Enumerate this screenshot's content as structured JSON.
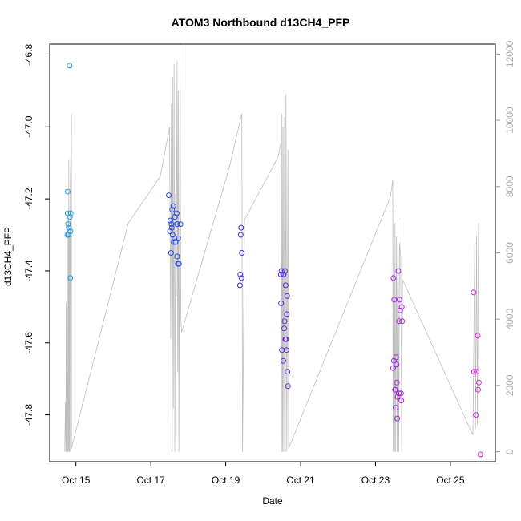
{
  "chart_data": {
    "type": "scatter",
    "title": "ATOM3 Northbound d13CH4_PFP",
    "xlabel": "Date",
    "ylabel": "d13CH4_PFP",
    "x_ticks": [
      "Oct 15",
      "Oct 17",
      "Oct 19",
      "Oct 21",
      "Oct 23",
      "Oct 25"
    ],
    "x_tick_days": [
      15,
      17,
      19,
      21,
      23,
      25
    ],
    "xlim_days": [
      14.3,
      26.2
    ],
    "y_ticks": [
      -46.8,
      -47.0,
      -47.2,
      -47.4,
      -47.6,
      -47.8
    ],
    "ylim": [
      -47.93,
      -46.77
    ],
    "y2_ticks": [
      0,
      2000,
      4000,
      6000,
      8000,
      10000,
      12000
    ],
    "y2lim": [
      -300,
      12300
    ],
    "grid": false,
    "legend": "none",
    "colors": {
      "start": "#1fa0f0",
      "mid": "#2b2bdc",
      "end": "#e61ee6",
      "line": "#bebebe"
    },
    "points": [
      {
        "x": 14.83,
        "y": -46.83
      },
      {
        "x": 14.78,
        "y": -47.18
      },
      {
        "x": 14.78,
        "y": -47.24
      },
      {
        "x": 14.86,
        "y": -47.24
      },
      {
        "x": 14.84,
        "y": -47.25
      },
      {
        "x": 14.79,
        "y": -47.27
      },
      {
        "x": 14.81,
        "y": -47.28
      },
      {
        "x": 14.85,
        "y": -47.29
      },
      {
        "x": 14.8,
        "y": -47.3
      },
      {
        "x": 14.77,
        "y": -47.3
      },
      {
        "x": 14.85,
        "y": -47.42
      },
      {
        "x": 17.48,
        "y": -47.19
      },
      {
        "x": 17.6,
        "y": -47.22
      },
      {
        "x": 17.57,
        "y": -47.23
      },
      {
        "x": 17.69,
        "y": -47.24
      },
      {
        "x": 17.64,
        "y": -47.25
      },
      {
        "x": 17.52,
        "y": -47.26
      },
      {
        "x": 17.55,
        "y": -47.27
      },
      {
        "x": 17.79,
        "y": -47.27
      },
      {
        "x": 17.7,
        "y": -47.27
      },
      {
        "x": 17.56,
        "y": -47.28
      },
      {
        "x": 17.51,
        "y": -47.29
      },
      {
        "x": 17.58,
        "y": -47.3
      },
      {
        "x": 17.63,
        "y": -47.31
      },
      {
        "x": 17.73,
        "y": -47.31
      },
      {
        "x": 17.66,
        "y": -47.32
      },
      {
        "x": 17.61,
        "y": -47.32
      },
      {
        "x": 17.54,
        "y": -47.35
      },
      {
        "x": 17.7,
        "y": -47.36
      },
      {
        "x": 17.72,
        "y": -47.38
      },
      {
        "x": 17.75,
        "y": -47.38
      },
      {
        "x": 19.41,
        "y": -47.28
      },
      {
        "x": 19.4,
        "y": -47.3
      },
      {
        "x": 19.43,
        "y": -47.35
      },
      {
        "x": 19.39,
        "y": -47.41
      },
      {
        "x": 19.42,
        "y": -47.42
      },
      {
        "x": 19.38,
        "y": -47.44
      },
      {
        "x": 20.49,
        "y": -47.4
      },
      {
        "x": 20.58,
        "y": -47.4
      },
      {
        "x": 20.47,
        "y": -47.41
      },
      {
        "x": 20.55,
        "y": -47.41
      },
      {
        "x": 20.53,
        "y": -47.41
      },
      {
        "x": 20.6,
        "y": -47.44
      },
      {
        "x": 20.64,
        "y": -47.47
      },
      {
        "x": 20.48,
        "y": -47.49
      },
      {
        "x": 20.63,
        "y": -47.52
      },
      {
        "x": 20.57,
        "y": -47.54
      },
      {
        "x": 20.56,
        "y": -47.56
      },
      {
        "x": 20.59,
        "y": -47.59
      },
      {
        "x": 20.61,
        "y": -47.59
      },
      {
        "x": 20.5,
        "y": -47.62
      },
      {
        "x": 20.62,
        "y": -47.62
      },
      {
        "x": 20.54,
        "y": -47.65
      },
      {
        "x": 20.65,
        "y": -47.68
      },
      {
        "x": 20.66,
        "y": -47.72
      },
      {
        "x": 23.61,
        "y": -47.4
      },
      {
        "x": 23.48,
        "y": -47.42
      },
      {
        "x": 23.64,
        "y": -47.48
      },
      {
        "x": 23.5,
        "y": -47.48
      },
      {
        "x": 23.7,
        "y": -47.5
      },
      {
        "x": 23.66,
        "y": -47.51
      },
      {
        "x": 23.63,
        "y": -47.54
      },
      {
        "x": 23.71,
        "y": -47.54
      },
      {
        "x": 23.55,
        "y": -47.64
      },
      {
        "x": 23.49,
        "y": -47.65
      },
      {
        "x": 23.56,
        "y": -47.66
      },
      {
        "x": 23.47,
        "y": -47.67
      },
      {
        "x": 23.57,
        "y": -47.71
      },
      {
        "x": 23.52,
        "y": -47.73
      },
      {
        "x": 23.53,
        "y": -47.73
      },
      {
        "x": 23.62,
        "y": -47.74
      },
      {
        "x": 23.68,
        "y": -47.74
      },
      {
        "x": 23.59,
        "y": -47.75
      },
      {
        "x": 23.69,
        "y": -47.76
      },
      {
        "x": 23.54,
        "y": -47.78
      },
      {
        "x": 23.58,
        "y": -47.81
      },
      {
        "x": 25.62,
        "y": -47.46
      },
      {
        "x": 25.73,
        "y": -47.58
      },
      {
        "x": 25.63,
        "y": -47.68
      },
      {
        "x": 25.7,
        "y": -47.68
      },
      {
        "x": 25.76,
        "y": -47.71
      },
      {
        "x": 25.74,
        "y": -47.73
      },
      {
        "x": 25.68,
        "y": -47.8
      },
      {
        "x": 25.8,
        "y": -47.91
      }
    ],
    "altitude_path": [
      [
        14.7,
        0
      ],
      [
        14.72,
        1500
      ],
      [
        14.73,
        0
      ],
      [
        14.74,
        4500
      ],
      [
        14.75,
        0
      ],
      [
        14.76,
        2800
      ],
      [
        14.78,
        0
      ],
      [
        14.79,
        7000
      ],
      [
        14.8,
        0
      ],
      [
        14.81,
        8800
      ],
      [
        14.82,
        0
      ],
      [
        14.83,
        6500
      ],
      [
        14.84,
        0
      ],
      [
        14.85,
        8100
      ],
      [
        14.87,
        9200
      ],
      [
        14.88,
        10200
      ],
      [
        14.88,
        100
      ],
      [
        16.4,
        6900
      ],
      [
        17.25,
        8300
      ],
      [
        17.5,
        9800
      ],
      [
        17.53,
        3400
      ],
      [
        17.55,
        10500
      ],
      [
        17.57,
        0
      ],
      [
        17.58,
        11300
      ],
      [
        17.6,
        1300
      ],
      [
        17.62,
        11700
      ],
      [
        17.64,
        0
      ],
      [
        17.66,
        7800
      ],
      [
        17.68,
        4700
      ],
      [
        17.7,
        11800
      ],
      [
        17.72,
        2400
      ],
      [
        17.73,
        10900
      ],
      [
        17.75,
        0
      ],
      [
        17.78,
        12300
      ],
      [
        17.8,
        4100
      ],
      [
        17.82,
        3600
      ],
      [
        19.1,
        8600
      ],
      [
        19.43,
        10200
      ],
      [
        19.45,
        0
      ],
      [
        19.5,
        7000
      ],
      [
        20.4,
        8900
      ],
      [
        20.47,
        9300
      ],
      [
        20.49,
        0
      ],
      [
        20.5,
        10200
      ],
      [
        20.52,
        0
      ],
      [
        20.53,
        9800
      ],
      [
        20.55,
        0
      ],
      [
        20.57,
        10100
      ],
      [
        20.59,
        0
      ],
      [
        20.61,
        10800
      ],
      [
        20.63,
        0
      ],
      [
        20.66,
        9100
      ],
      [
        20.68,
        100
      ],
      [
        23.4,
        7700
      ],
      [
        23.46,
        8200
      ],
      [
        23.47,
        0
      ],
      [
        23.49,
        7300
      ],
      [
        23.51,
        0
      ],
      [
        23.52,
        6900
      ],
      [
        23.54,
        0
      ],
      [
        23.56,
        6500
      ],
      [
        23.58,
        0
      ],
      [
        23.6,
        7000
      ],
      [
        23.62,
        0
      ],
      [
        23.64,
        6300
      ],
      [
        23.67,
        5900
      ],
      [
        23.7,
        100
      ],
      [
        23.72,
        5200
      ],
      [
        25.6,
        500
      ],
      [
        25.65,
        6300
      ],
      [
        25.67,
        700
      ],
      [
        25.7,
        6500
      ],
      [
        25.72,
        800
      ],
      [
        25.75,
        6900
      ]
    ]
  }
}
